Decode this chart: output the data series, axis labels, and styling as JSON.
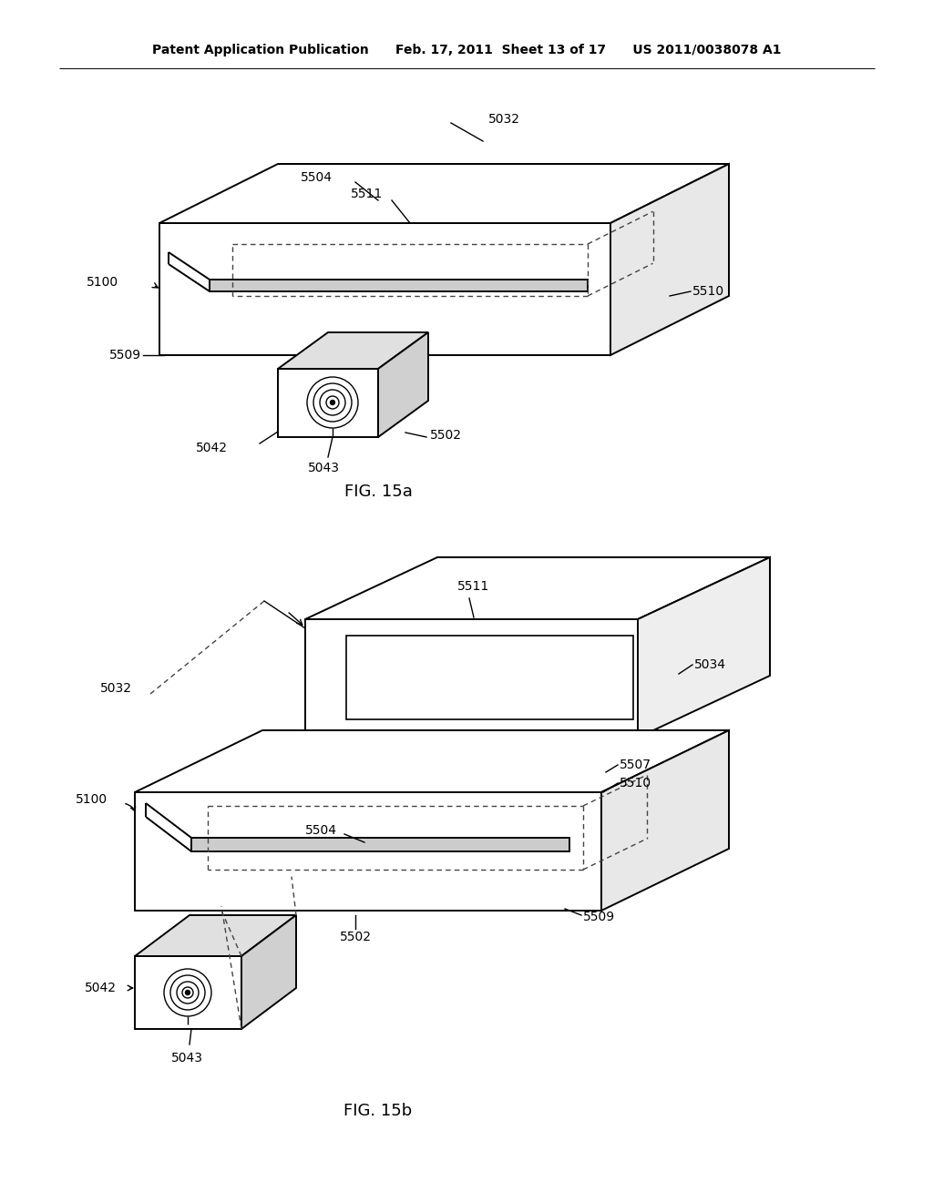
{
  "bg_color": "#ffffff",
  "lc": "#000000",
  "dc": "#555555",
  "header": "Patent Application Publication      Feb. 17, 2011  Sheet 13 of 17      US 2011/0038078 A1",
  "fig15a": "FIG. 15a",
  "fig15b": "FIG. 15b",
  "lw": 1.4,
  "dlw": 1.0
}
